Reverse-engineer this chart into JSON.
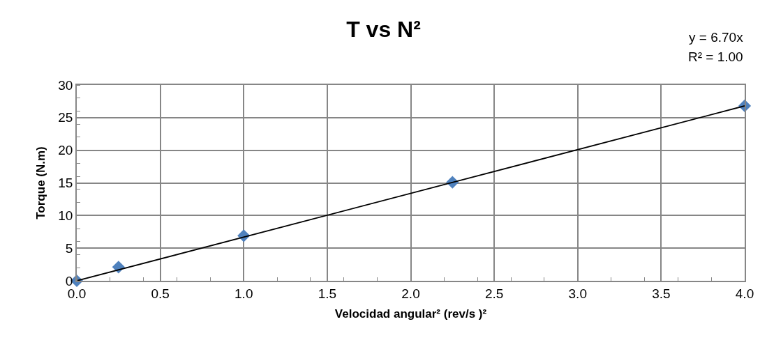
{
  "chart_data": {
    "type": "scatter",
    "title": "T vs N²",
    "xlabel": "Velocidad angular² (rev/s )²",
    "ylabel": "Torque (N.m)",
    "annotations": [
      "y = 6.70x",
      "R² = 1.00"
    ],
    "series": [
      {
        "color": "#4f81bd",
        "marker": "diamond",
        "x": [
          0,
          0.25,
          1,
          2.25,
          4
        ],
        "values": [
          0,
          2.1,
          6.9,
          15.1,
          26.8
        ]
      },
      {
        "type": "line",
        "color": "#000000",
        "marker": "none",
        "line_style": "solid",
        "x": [
          0,
          4
        ],
        "values": [
          0,
          26.8
        ]
      }
    ],
    "xlim": [
      0,
      4
    ],
    "xticks": [
      {
        "value": 0,
        "label": "0.0"
      },
      {
        "value": 0.5,
        "label": "0.5"
      },
      {
        "value": 1,
        "label": "1.0"
      },
      {
        "value": 1.5,
        "label": "1.5"
      },
      {
        "value": 2,
        "label": "2.0"
      },
      {
        "value": 2.5,
        "label": "2.5"
      },
      {
        "value": 3,
        "label": "3.0"
      },
      {
        "value": 3.5,
        "label": "3.5"
      },
      {
        "value": 4,
        "label": "4.0"
      }
    ],
    "ylim": [
      0,
      30
    ],
    "yticks": [
      0,
      5,
      10,
      15,
      20,
      25,
      30
    ],
    "grid": true
  }
}
